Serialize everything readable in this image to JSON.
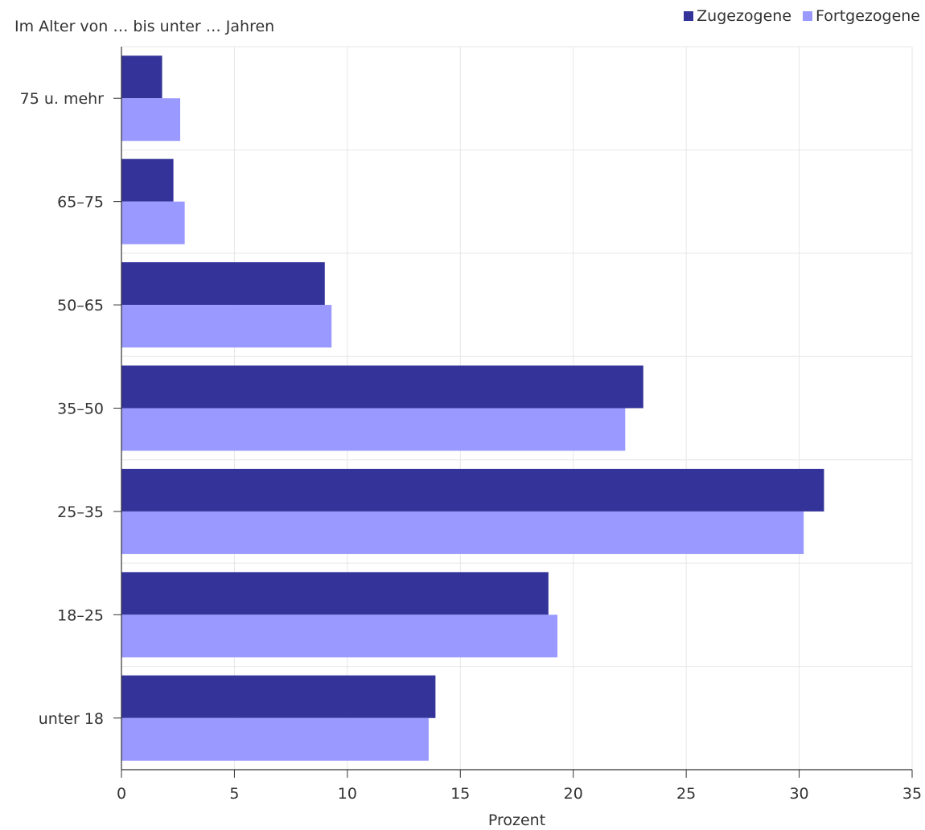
{
  "chart_data": {
    "type": "bar",
    "orientation": "horizontal",
    "y_title": "Im Alter von … bis unter … Jahren",
    "xlabel": "Prozent",
    "categories": [
      "75 u. mehr",
      "65–75",
      "50–65",
      "35–50",
      "25–35",
      "18–25",
      "unter 18"
    ],
    "series": [
      {
        "name": "Zugezogene",
        "color": "#333399",
        "values": [
          1.8,
          2.3,
          9.0,
          23.1,
          31.1,
          18.9,
          13.9
        ]
      },
      {
        "name": "Fortgezogene",
        "color": "#9999ff",
        "values": [
          2.6,
          2.8,
          9.3,
          22.3,
          30.2,
          19.3,
          13.6
        ]
      }
    ],
    "xlim": [
      0,
      35
    ],
    "xticks": [
      "0",
      "5",
      "10",
      "15",
      "20",
      "25",
      "30",
      "35"
    ],
    "grid": true,
    "legend_position": "top-right"
  }
}
